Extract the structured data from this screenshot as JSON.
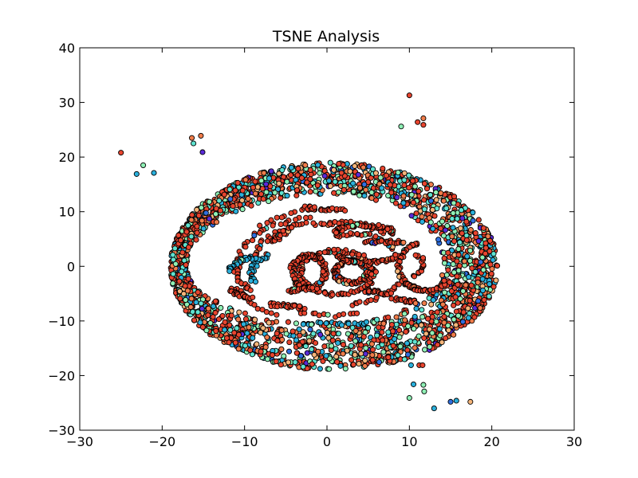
{
  "chart_data": {
    "type": "scatter",
    "title": "TSNE Analysis",
    "xlabel": "",
    "ylabel": "",
    "xlim": [
      -30,
      30
    ],
    "ylim": [
      -30,
      40
    ],
    "x_ticks": [
      -30,
      -20,
      -10,
      0,
      10,
      20,
      30
    ],
    "y_ticks": [
      -30,
      -20,
      -10,
      0,
      10,
      20,
      30,
      40
    ],
    "x_tick_labels": [
      "−30",
      "−20",
      "−10",
      "0",
      "10",
      "20",
      "30"
    ],
    "y_tick_labels": [
      "−30",
      "−20",
      "−10",
      "0",
      "10",
      "20",
      "30",
      "40"
    ],
    "grid": false,
    "legend": "none",
    "marker_edge_color": "#000000",
    "palette": [
      "#e8442e",
      "#f07c4a",
      "#f5b57a",
      "#8ff0b5",
      "#5fe3d0",
      "#2ab0dc",
      "#2f6fe0",
      "#5a2ad8"
    ],
    "note": "",
    "outliers": {
      "x": [
        -25,
        -23.1,
        -22.3,
        -21,
        -16.4,
        -16.2,
        -15.3,
        -15.1,
        10,
        11,
        11.7,
        11.7,
        9,
        10.2,
        11.2,
        11.6,
        10.5,
        11.7,
        11.8,
        10,
        13,
        15,
        15.7,
        17.4
      ],
      "y": [
        20.8,
        16.9,
        18.5,
        17.1,
        23.5,
        22.5,
        23.9,
        20.9,
        31.3,
        26.4,
        27.1,
        25.9,
        25.6,
        -18.1,
        -18.1,
        -18.1,
        -21.6,
        -21.7,
        -22.9,
        -24.1,
        -26,
        -24.8,
        -24.6,
        -24.8
      ],
      "c": [
        0,
        5,
        3,
        5,
        1,
        4,
        1,
        7,
        0,
        0,
        1,
        0,
        3,
        5,
        0,
        0,
        5,
        3,
        3,
        3,
        5,
        6,
        5,
        2
      ]
    },
    "outer_ring": {
      "center": [
        0.5,
        0
      ],
      "rx_in": [
        13.5,
        17.5
      ],
      "rx_out": [
        20.2,
        19.5
      ],
      "ry_in": [
        13.2,
        10.5
      ],
      "ry_out": [
        19,
        19
      ],
      "count": 2400
    },
    "inner_arcs": [
      {
        "cx": -1.5,
        "cy": 0.5,
        "rx": 9.2,
        "ry": 8.3,
        "start": 95,
        "end": 190,
        "color": 0
      },
      {
        "cx": -1.0,
        "cy": 1.0,
        "rx": 7.8,
        "ry": 6.8,
        "start": 80,
        "end": 175,
        "color": 0
      },
      {
        "cx": 0.5,
        "cy": 0.0,
        "rx": 12.0,
        "ry": 10.5,
        "start": 100,
        "end": 135,
        "color": 0
      },
      {
        "cx": -6.0,
        "cy": -1.0,
        "rx": 5.0,
        "ry": 4.5,
        "start": 150,
        "end": 230,
        "color": 0
      },
      {
        "cx": -5.0,
        "cy": -1.5,
        "rx": 4.2,
        "ry": 4.0,
        "start": 120,
        "end": 200,
        "color": 5
      },
      {
        "cx": -1.0,
        "cy": -1.0,
        "rx": 10.5,
        "ry": 9.0,
        "start": 200,
        "end": 240,
        "color": 0
      },
      {
        "cx": 0.5,
        "cy": -0.5,
        "rx": 9.5,
        "ry": 8.5,
        "start": 245,
        "end": 290,
        "color": 0
      },
      {
        "cx": 1.5,
        "cy": -0.5,
        "rx": 8.0,
        "ry": 6.5,
        "start": 280,
        "end": 340,
        "color": 0
      },
      {
        "cx": 4.0,
        "cy": 0.5,
        "rx": 7.5,
        "ry": 5.0,
        "start": 330,
        "end": 380,
        "color": 0
      },
      {
        "cx": 3.5,
        "cy": 1.5,
        "rx": 5.0,
        "ry": 4.5,
        "start": 20,
        "end": 120,
        "color": 0
      },
      {
        "cx": 2.0,
        "cy": 2.5,
        "rx": 6.5,
        "ry": 5.5,
        "start": 40,
        "end": 110,
        "color": 0
      },
      {
        "cx": 4.5,
        "cy": 6.0,
        "rx": 3.5,
        "ry": 1.5,
        "start": 0,
        "end": 180,
        "color": 0
      },
      {
        "cx": 5.0,
        "cy": 2.0,
        "rx": 3.5,
        "ry": 1.2,
        "start": 180,
        "end": 360,
        "color": 0
      },
      {
        "cx": 11.0,
        "cy": 0.0,
        "rx": 2.2,
        "ry": 4.0,
        "start": 90,
        "end": 270,
        "color": 0
      },
      {
        "cx": 12.0,
        "cy": -1.0,
        "rx": 3.0,
        "ry": 3.5,
        "start": 210,
        "end": 330,
        "color": 0
      },
      {
        "cx": 3.0,
        "cy": -1.0,
        "rx": 2.0,
        "ry": 2.0,
        "start": 0,
        "end": 360,
        "color": 0
      },
      {
        "cx": 1.2,
        "cy": -1.2,
        "rx": 4.5,
        "ry": 4.0,
        "start": 0,
        "end": 360,
        "color": 0
      },
      {
        "cx": -2.2,
        "cy": -1.0,
        "rx": 2.0,
        "ry": 3.0,
        "start": 0,
        "end": 360,
        "color": 0
      },
      {
        "cx": -9.0,
        "cy": -2.0,
        "rx": 3.0,
        "ry": 3.5,
        "start": 80,
        "end": 160,
        "color": 5
      },
      {
        "cx": -8.0,
        "cy": -4.0,
        "rx": 3.5,
        "ry": 2.0,
        "start": 180,
        "end": 250,
        "color": 0
      }
    ],
    "inner_lines": [
      {
        "x0": -7.0,
        "y0": -7.0,
        "x1": -3.0,
        "y1": -7.5,
        "color": 0
      },
      {
        "x0": -4.5,
        "y0": -4.5,
        "x1": -1.5,
        "y1": -4.0,
        "color": 0
      },
      {
        "x0": -3.0,
        "y0": -10.5,
        "x1": 5.0,
        "y1": -10.5,
        "color": 5
      },
      {
        "x0": 4.5,
        "y0": -4.5,
        "x1": 7.5,
        "y1": -5.0,
        "color": 0
      },
      {
        "x0": 8.0,
        "y0": -6.0,
        "x1": 11.0,
        "y1": -6.5,
        "color": 0
      },
      {
        "x0": 4.5,
        "y0": 4.5,
        "x1": 9.5,
        "y1": 4.5,
        "color": 0
      },
      {
        "x0": -3.0,
        "y0": 10.8,
        "x1": 2.0,
        "y1": 10.2,
        "color": 0
      },
      {
        "x0": -6.5,
        "y0": 4.5,
        "x1": -4.5,
        "y1": 7.0,
        "color": 0
      }
    ]
  }
}
